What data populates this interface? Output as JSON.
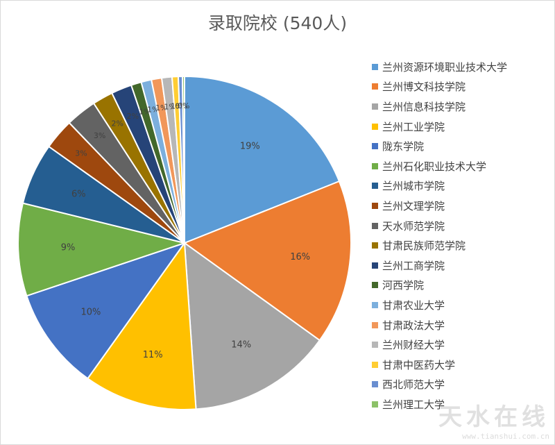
{
  "chart_data": {
    "type": "pie",
    "title": "录取院校 (540人)",
    "legend_position": "right",
    "slices": [
      {
        "label": "兰州资源环境职业技术大学",
        "value": 19,
        "display": "19%",
        "color": "#5b9bd5"
      },
      {
        "label": "兰州博文科技学院",
        "value": 16,
        "display": "16%",
        "color": "#ed7d31"
      },
      {
        "label": "兰州信息科技学院",
        "value": 14,
        "display": "14%",
        "color": "#a5a5a5"
      },
      {
        "label": "兰州工业学院",
        "value": 11,
        "display": "11%",
        "color": "#ffc000"
      },
      {
        "label": "陇东学院",
        "value": 10,
        "display": "10%",
        "color": "#4472c4"
      },
      {
        "label": "兰州石化职业技术大学",
        "value": 9,
        "display": "9%",
        "color": "#70ad47"
      },
      {
        "label": "兰州城市学院",
        "value": 6,
        "display": "6%",
        "color": "#255e91"
      },
      {
        "label": "兰州文理学院",
        "value": 3,
        "display": "3%",
        "color": "#9e480e"
      },
      {
        "label": "天水师范学院",
        "value": 3,
        "display": "3%",
        "color": "#636363"
      },
      {
        "label": "甘肃民族师范学院",
        "value": 2,
        "display": "2%",
        "color": "#997300"
      },
      {
        "label": "兰州工商学院",
        "value": 2,
        "display": "2%",
        "color": "#264478"
      },
      {
        "label": "河西学院",
        "value": 1,
        "display": "1%",
        "color": "#43682b"
      },
      {
        "label": "甘肃农业大学",
        "value": 1,
        "display": "1%",
        "color": "#7cafdd"
      },
      {
        "label": "甘肃政法大学",
        "value": 1,
        "display": "1%",
        "color": "#f1975a"
      },
      {
        "label": "兰州财经大学",
        "value": 1,
        "display": "1%",
        "color": "#b7b7b7"
      },
      {
        "label": "甘肃中医药大学",
        "value": 0.6,
        "display": "1%",
        "color": "#ffcd33"
      },
      {
        "label": "西北师范大学",
        "value": 0.4,
        "display": "0%",
        "color": "#698ed0"
      },
      {
        "label": "兰州理工大学",
        "value": 0.2,
        "display": "0%",
        "color": "#8cc168"
      }
    ]
  },
  "watermark": {
    "text": "天水在线",
    "url": "www.tianshui.com.cn"
  }
}
